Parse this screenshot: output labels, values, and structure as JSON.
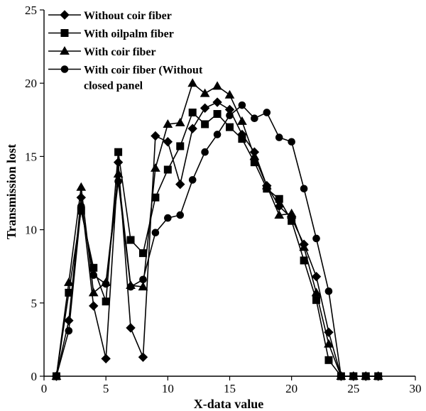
{
  "chart_data": {
    "type": "line",
    "title": "",
    "xlabel": "X-data value",
    "ylabel": "Transmission lost",
    "xlim": [
      0,
      30
    ],
    "ylim": [
      0,
      25
    ],
    "xticks": [
      "0",
      "5",
      "10",
      "15",
      "20",
      "25",
      "30"
    ],
    "yticks": [
      "0",
      "5",
      "10",
      "15",
      "20",
      "25"
    ],
    "grid": false,
    "legend_position": "top-left",
    "series": [
      {
        "name": "Without coir fiber",
        "marker": "diamond",
        "color": "#000000",
        "points": [
          [
            1,
            0
          ],
          [
            2,
            3.8
          ],
          [
            3,
            12.2
          ],
          [
            4,
            4.8
          ],
          [
            5,
            1.2
          ],
          [
            6,
            14.6
          ],
          [
            7,
            3.3
          ],
          [
            8,
            1.3
          ],
          [
            9,
            16.4
          ],
          [
            10,
            16
          ],
          [
            11,
            13.1
          ],
          [
            12,
            16.9
          ],
          [
            13,
            18.3
          ],
          [
            14,
            18.7
          ],
          [
            15,
            18.2
          ],
          [
            16,
            16.5
          ],
          [
            17,
            15.3
          ],
          [
            18,
            13
          ],
          [
            19,
            11.6
          ],
          [
            20,
            10.8
          ],
          [
            21,
            9
          ],
          [
            22,
            6.8
          ],
          [
            23,
            3
          ],
          [
            24,
            0
          ],
          [
            25,
            0
          ],
          [
            26,
            0
          ],
          [
            27,
            0
          ]
        ]
      },
      {
        "name": "With oilpalm fiber",
        "marker": "square",
        "color": "#000000",
        "points": [
          [
            1,
            0
          ],
          [
            2,
            5.7
          ],
          [
            3,
            11.3
          ],
          [
            4,
            7.4
          ],
          [
            5,
            5.1
          ],
          [
            6,
            15.3
          ],
          [
            7,
            9.3
          ],
          [
            8,
            8.4
          ],
          [
            9,
            12.2
          ],
          [
            10,
            14.1
          ],
          [
            11,
            15.7
          ],
          [
            12,
            18
          ],
          [
            13,
            17.2
          ],
          [
            14,
            17.9
          ],
          [
            15,
            17
          ],
          [
            16,
            16.2
          ],
          [
            17,
            14.6
          ],
          [
            18,
            12.8
          ],
          [
            19,
            12.1
          ],
          [
            20,
            10.6
          ],
          [
            21,
            7.9
          ],
          [
            22,
            5.2
          ],
          [
            23,
            1.1
          ],
          [
            24,
            0
          ],
          [
            25,
            0
          ],
          [
            26,
            0
          ],
          [
            27,
            0
          ]
        ]
      },
      {
        "name": "With coir fiber",
        "marker": "triangle",
        "color": "#000000",
        "points": [
          [
            1,
            0
          ],
          [
            2,
            6.4
          ],
          [
            3,
            12.9
          ],
          [
            4,
            5.7
          ],
          [
            5,
            6.4
          ],
          [
            6,
            13.8
          ],
          [
            7,
            6.2
          ],
          [
            8,
            6.1
          ],
          [
            9,
            14.2
          ],
          [
            10,
            17.2
          ],
          [
            11,
            17.3
          ],
          [
            12,
            20
          ],
          [
            13,
            19.3
          ],
          [
            14,
            19.8
          ],
          [
            15,
            19.2
          ],
          [
            16,
            17.4
          ],
          [
            17,
            15
          ],
          [
            18,
            13
          ],
          [
            19,
            11
          ],
          [
            20,
            11.1
          ],
          [
            21,
            8.8
          ],
          [
            22,
            5.7
          ],
          [
            23,
            2.2
          ],
          [
            24,
            0
          ],
          [
            25,
            0
          ],
          [
            26,
            0
          ],
          [
            27,
            0
          ]
        ]
      },
      {
        "name": "With coir fiber (Without closed panel",
        "legend_lines": [
          "With coir fiber (Without",
          "closed panel"
        ],
        "marker": "circle",
        "color": "#000000",
        "points": [
          [
            1,
            0
          ],
          [
            2,
            3.1
          ],
          [
            3,
            11.6
          ],
          [
            4,
            6.9
          ],
          [
            5,
            6.3
          ],
          [
            6,
            13.3
          ],
          [
            7,
            6.1
          ],
          [
            8,
            6.6
          ],
          [
            9,
            9.8
          ],
          [
            10,
            10.8
          ],
          [
            11,
            11
          ],
          [
            12,
            13.4
          ],
          [
            13,
            15.3
          ],
          [
            14,
            16.5
          ],
          [
            15,
            17.8
          ],
          [
            16,
            18.5
          ],
          [
            17,
            17.6
          ],
          [
            18,
            18
          ],
          [
            19,
            16.3
          ],
          [
            20,
            16
          ],
          [
            21,
            12.8
          ],
          [
            22,
            9.4
          ],
          [
            23,
            5.8
          ],
          [
            24,
            0
          ],
          [
            25,
            0
          ],
          [
            26,
            0
          ],
          [
            27,
            0
          ]
        ]
      }
    ]
  }
}
